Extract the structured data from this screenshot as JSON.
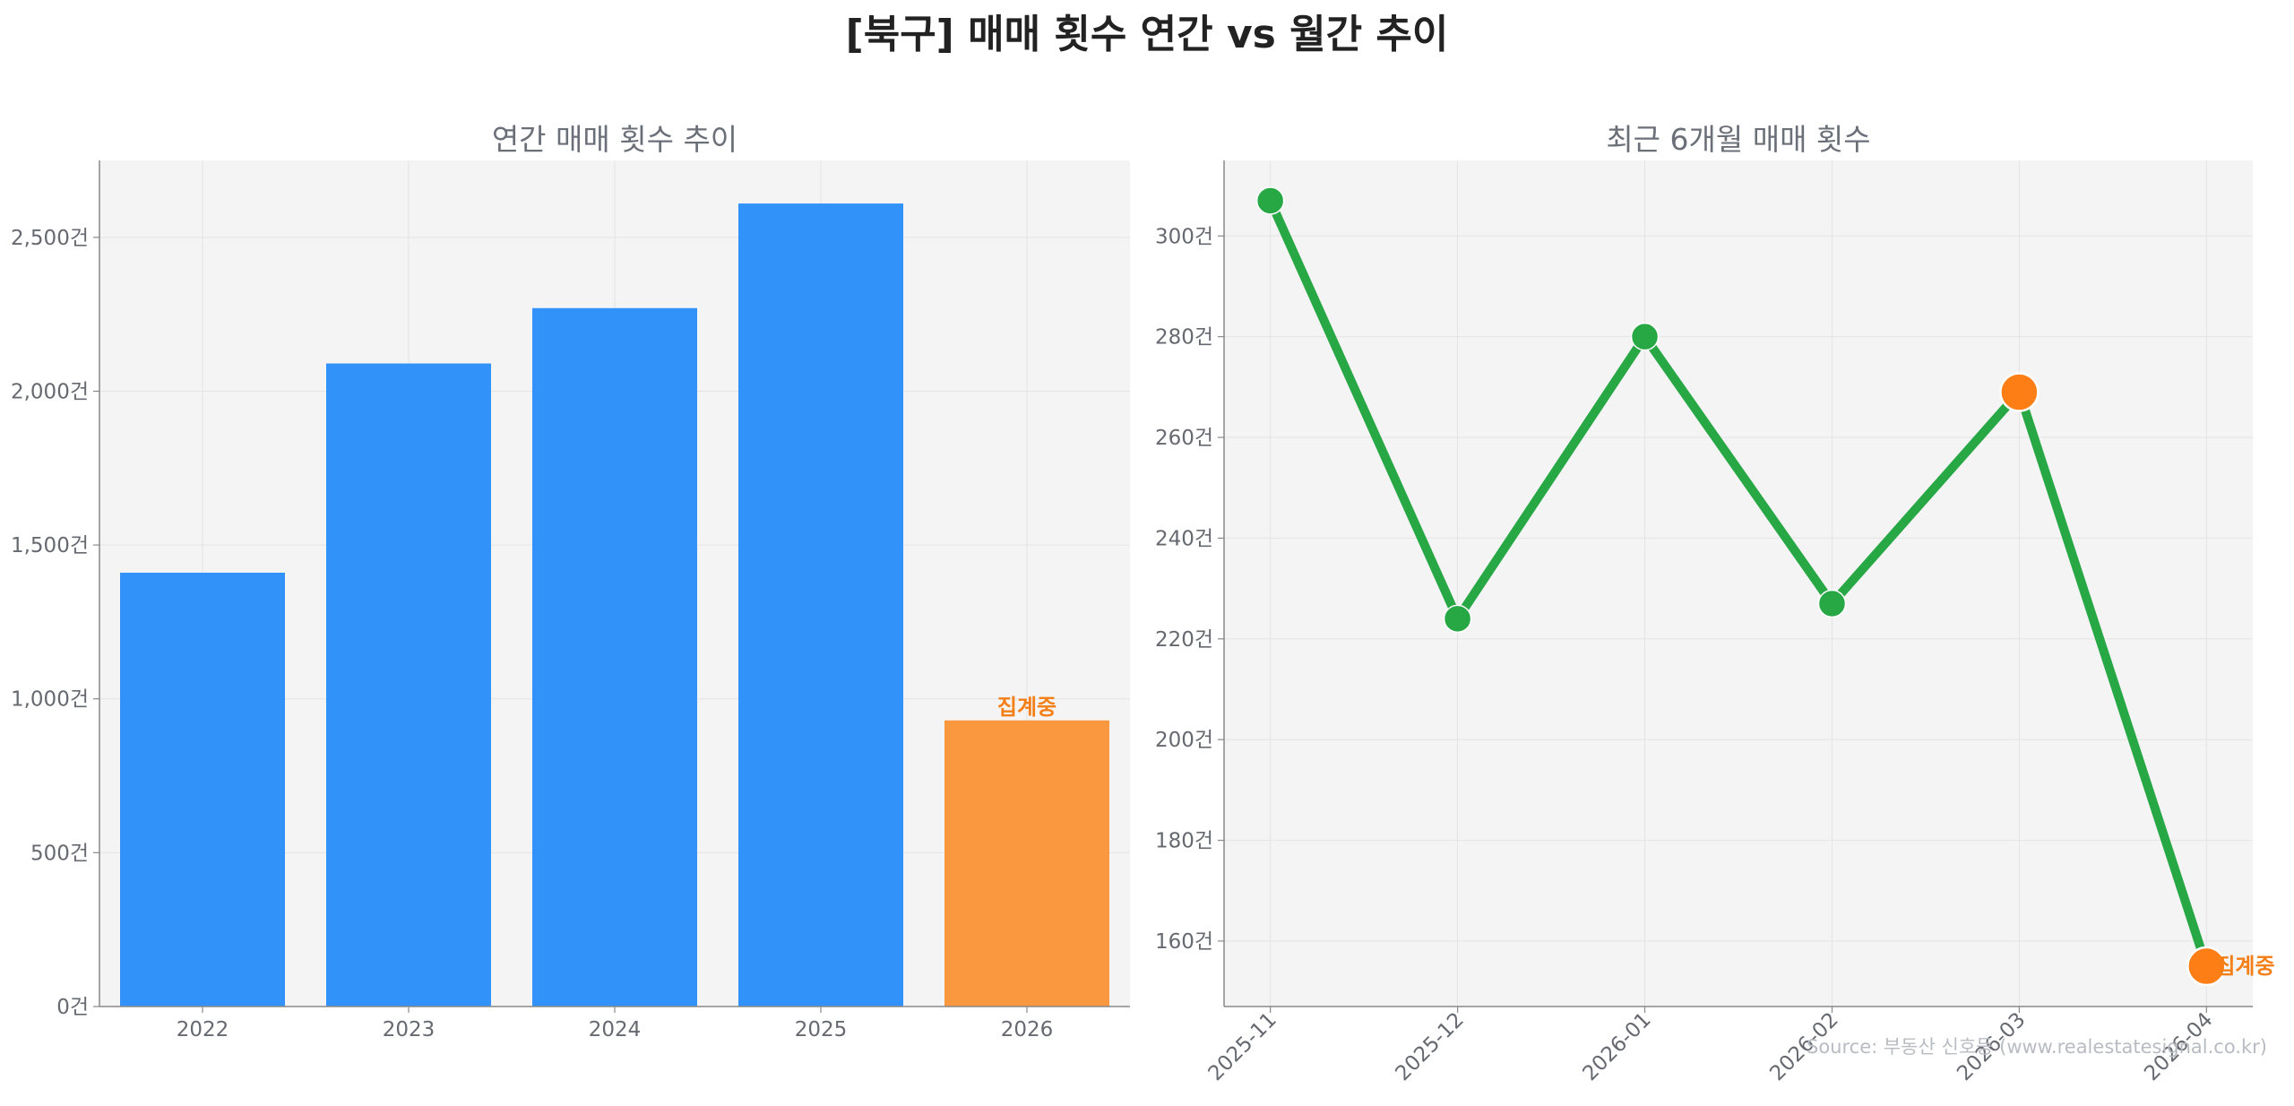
{
  "title": "[북구] 매매 횟수 연간 vs 월간 추이",
  "source": "Source: 부동산 신호등 (www.realestatesignal.co.kr)",
  "colors": {
    "bar": "#3193fa",
    "highlight": "#fa983f",
    "line": "#28a745",
    "marker": "#28a745",
    "marker_highlight": "#fd7e14",
    "note": "#f57f17",
    "panel_bg": "#f4f4f4"
  },
  "chart_data": [
    {
      "type": "bar",
      "title": "연간 매매 횟수 추이",
      "categories": [
        "2022",
        "2023",
        "2024",
        "2025",
        "2026"
      ],
      "values": [
        1410,
        2090,
        2270,
        2610,
        930
      ],
      "ylim": [
        0,
        2750
      ],
      "yticks": [
        0,
        500,
        1000,
        1500,
        2000,
        2500
      ],
      "ytick_labels": [
        "0건",
        "500건",
        "1,000건",
        "1,500건",
        "2,000건",
        "2,500건"
      ],
      "highlight_index": 4,
      "annotation": "집계중",
      "grid": true
    },
    {
      "type": "line",
      "title": "최근 6개월 매매 횟수",
      "categories": [
        "2025-11",
        "2025-12",
        "2026-01",
        "2026-02",
        "2026-03",
        "2026-04"
      ],
      "values": [
        307,
        224,
        280,
        227,
        269,
        155
      ],
      "ylim": [
        147,
        315
      ],
      "yticks": [
        160,
        180,
        200,
        220,
        240,
        260,
        280,
        300
      ],
      "ytick_labels": [
        "160건",
        "180건",
        "200건",
        "220건",
        "240건",
        "260건",
        "280건",
        "300건"
      ],
      "highlight_indices": [
        4,
        5
      ],
      "annotation": "집계중",
      "grid": true
    }
  ]
}
